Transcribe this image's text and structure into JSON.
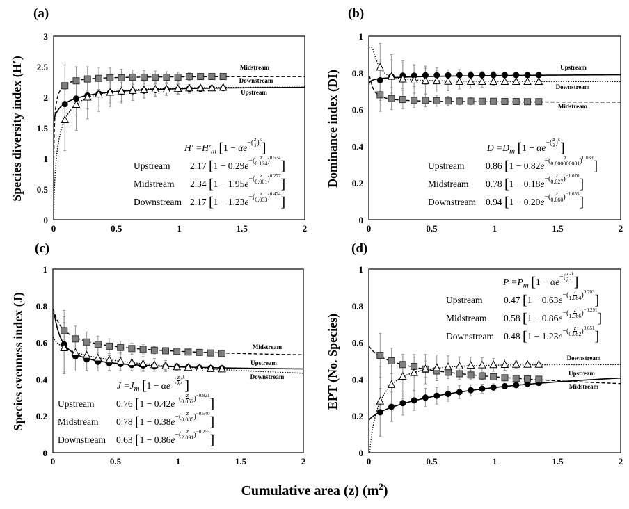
{
  "xlabel": "Cumulative area (z) (m",
  "xlabel_sup": "2",
  "xlabel_close": ")",
  "equation_parts": {
    "one_minus": "1 − ",
    "e": "e",
    "minus": "−(",
    "close": ")",
    "z": "z",
    "open_br": "[",
    "close_br": "]",
    "alpha": "α",
    "lambda": "λ",
    "k": "k"
  },
  "colors": {
    "line": "#000000",
    "square_fill": "#808080",
    "circle_fill": "#000000",
    "triangle_fill": "#ffffff",
    "errorbar": "#999999"
  },
  "chart_data": [
    {
      "panel": "(a)",
      "type": "scatter",
      "ylabel": "Species diversity index (H′)",
      "xlim": [
        0,
        2
      ],
      "ylim": [
        0,
        3
      ],
      "xticks": [
        "0",
        "0.5",
        "1",
        "1.5",
        "2"
      ],
      "yticks": [
        "0",
        "0.5",
        "1",
        "1.5",
        "2",
        "2.5",
        "3"
      ],
      "formula": {
        "lhs": "H′ =H′",
        "sub": "m"
      },
      "x": [
        0.09,
        0.18,
        0.27,
        0.36,
        0.45,
        0.54,
        0.63,
        0.72,
        0.81,
        0.9,
        0.99,
        1.08,
        1.17,
        1.26,
        1.35
      ],
      "series": [
        {
          "name": "Upstream",
          "marker": "circle",
          "line": "solid",
          "params": {
            "Ym": "2.17",
            "alpha": "0.29",
            "lambda": "0.124",
            "k": "0.534"
          },
          "values": [
            1.89,
            1.98,
            2.03,
            2.06,
            2.08,
            2.09,
            2.1,
            2.11,
            2.12,
            2.13,
            2.13,
            2.14,
            2.14,
            2.15,
            2.15
          ],
          "error": [
            0.3,
            0.27,
            0.22,
            0.2,
            0.17,
            0.15,
            0.13,
            0.11,
            0.1,
            0.09,
            0.08,
            0.07,
            0.05,
            0.03,
            0.01
          ]
        },
        {
          "name": "Midstream",
          "marker": "square",
          "line": "dashed",
          "params": {
            "Ym": "2.34",
            "alpha": "1.95",
            "lambda": "0.001",
            "k": "0.277"
          },
          "values": [
            2.19,
            2.27,
            2.3,
            2.31,
            2.32,
            2.32,
            2.33,
            2.33,
            2.33,
            2.33,
            2.33,
            2.34,
            2.34,
            2.34,
            2.34
          ],
          "error": [
            0.34,
            0.23,
            0.2,
            0.18,
            0.16,
            0.14,
            0.12,
            0.11,
            0.1,
            0.09,
            0.08,
            0.06,
            0.05,
            0.04,
            0.02
          ]
        },
        {
          "name": "Downstream",
          "marker": "triangle",
          "line": "dotted",
          "params": {
            "Ym": "2.17",
            "alpha": "1.23",
            "lambda": "0.033",
            "k": "0.474"
          },
          "values": [
            1.63,
            1.88,
            2.0,
            2.05,
            2.08,
            2.1,
            2.11,
            2.12,
            2.13,
            2.13,
            2.14,
            2.15,
            2.15,
            2.15,
            2.16
          ],
          "error": [
            0.5,
            0.42,
            0.35,
            0.28,
            0.23,
            0.19,
            0.16,
            0.14,
            0.12,
            0.1,
            0.08,
            0.06,
            0.05,
            0.03,
            0.01
          ]
        }
      ]
    },
    {
      "panel": "(b)",
      "type": "scatter",
      "ylabel": "Dominance index (DI)",
      "xlim": [
        0,
        2
      ],
      "ylim": [
        0,
        1
      ],
      "xticks": [
        "0",
        "0.5",
        "1",
        "1.5",
        "2"
      ],
      "yticks": [
        "0",
        "0.2",
        "0.4",
        "0.6",
        "0.8",
        "1"
      ],
      "formula": {
        "lhs": "D =D",
        "sub": "m"
      },
      "x": [
        0.09,
        0.18,
        0.27,
        0.36,
        0.45,
        0.54,
        0.63,
        0.72,
        0.81,
        0.9,
        0.99,
        1.08,
        1.17,
        1.26,
        1.35
      ],
      "series": [
        {
          "name": "Upstream",
          "marker": "circle",
          "line": "solid",
          "params": {
            "Ym": "0.86",
            "alpha": "0.82",
            "lambda": "0.000000001",
            "k": "0.039"
          },
          "values": [
            0.76,
            0.78,
            0.785,
            0.785,
            0.787,
            0.787,
            0.787,
            0.788,
            0.788,
            0.788,
            0.788,
            0.788,
            0.788,
            0.788,
            0.788
          ],
          "error": [
            0.11,
            0.09,
            0.07,
            0.06,
            0.05,
            0.04,
            0.03,
            0.03,
            0.02,
            0.02,
            0.02,
            0.01,
            0.01,
            0.01,
            0.0
          ]
        },
        {
          "name": "Midstream",
          "marker": "square",
          "line": "dashed",
          "params": {
            "Ym": "0.78",
            "alpha": "0.18",
            "lambda": "0.027",
            "k": "−1.070"
          },
          "values": [
            0.68,
            0.66,
            0.655,
            0.65,
            0.65,
            0.648,
            0.647,
            0.646,
            0.646,
            0.645,
            0.645,
            0.644,
            0.644,
            0.643,
            0.643
          ],
          "error": [
            0.09,
            0.06,
            0.05,
            0.04,
            0.035,
            0.03,
            0.025,
            0.02,
            0.02,
            0.015,
            0.01,
            0.01,
            0.005,
            0.005,
            0.0
          ]
        },
        {
          "name": "Downstream",
          "marker": "triangle",
          "line": "dotted",
          "params": {
            "Ym": "0.94",
            "alpha": "0.20",
            "lambda": "0.060",
            "k": "−1.655"
          },
          "values": [
            0.83,
            0.78,
            0.765,
            0.76,
            0.755,
            0.755,
            0.753,
            0.752,
            0.752,
            0.752,
            0.752,
            0.752,
            0.752,
            0.752,
            0.752
          ],
          "error": [
            0.13,
            0.12,
            0.1,
            0.08,
            0.07,
            0.06,
            0.05,
            0.04,
            0.035,
            0.03,
            0.02,
            0.015,
            0.01,
            0.005,
            0.0
          ]
        }
      ]
    },
    {
      "panel": "(c)",
      "type": "scatter",
      "ylabel": "Species evenness index (J)",
      "xlim": [
        0,
        2
      ],
      "ylim": [
        0,
        1
      ],
      "xticks": [
        "0",
        "0.5",
        "1",
        "1.5",
        "2"
      ],
      "yticks": [
        "0",
        "0.2",
        "0.4",
        "0.6",
        "0.8",
        "1"
      ],
      "formula": {
        "lhs": "J =J",
        "sub": "m"
      },
      "x": [
        0.09,
        0.18,
        0.27,
        0.36,
        0.45,
        0.54,
        0.63,
        0.72,
        0.81,
        0.9,
        0.99,
        1.08,
        1.17,
        1.26,
        1.35
      ],
      "series": [
        {
          "name": "Upstream",
          "marker": "circle",
          "line": "solid",
          "params": {
            "Ym": "0.76",
            "alpha": "0.42",
            "lambda": "0.052",
            "k": "−0.821"
          },
          "values": [
            0.59,
            0.525,
            0.508,
            0.495,
            0.488,
            0.483,
            0.478,
            0.475,
            0.472,
            0.47,
            0.467,
            0.465,
            0.463,
            0.461,
            0.46
          ],
          "error": [
            0.15,
            0.08,
            0.06,
            0.05,
            0.04,
            0.035,
            0.03,
            0.025,
            0.02,
            0.02,
            0.015,
            0.01,
            0.01,
            0.005,
            0.0
          ]
        },
        {
          "name": "Midstream",
          "marker": "square",
          "line": "dashed",
          "params": {
            "Ym": "0.78",
            "alpha": "0.38",
            "lambda": "0.085",
            "k": "−0.540"
          },
          "values": [
            0.665,
            0.62,
            0.603,
            0.59,
            0.58,
            0.573,
            0.567,
            0.563,
            0.558,
            0.555,
            0.552,
            0.548,
            0.546,
            0.543,
            0.54
          ],
          "error": [
            0.11,
            0.07,
            0.055,
            0.045,
            0.04,
            0.035,
            0.03,
            0.025,
            0.02,
            0.015,
            0.012,
            0.01,
            0.008,
            0.005,
            0.0
          ]
        },
        {
          "name": "Downstream",
          "marker": "triangle",
          "line": "dotted",
          "params": {
            "Ym": "0.63",
            "alpha": "0.86",
            "lambda": "2.091",
            "k": "−0.255"
          },
          "values": [
            0.57,
            0.545,
            0.53,
            0.515,
            0.505,
            0.497,
            0.49,
            0.483,
            0.478,
            0.472,
            0.467,
            0.463,
            0.46,
            0.457,
            0.455
          ],
          "error": [
            0.14,
            0.1,
            0.085,
            0.07,
            0.06,
            0.05,
            0.045,
            0.04,
            0.035,
            0.03,
            0.02,
            0.015,
            0.01,
            0.005,
            0.0
          ]
        }
      ]
    },
    {
      "panel": "(d)",
      "type": "scatter",
      "ylabel": "EPT (No. Species)",
      "xlim": [
        0,
        2
      ],
      "ylim": [
        0,
        1
      ],
      "xticks": [
        "0",
        "0.5",
        "1",
        "1.5",
        "2"
      ],
      "yticks": [
        "0",
        "0.2",
        "0.4",
        "0.6",
        "0.8",
        "1"
      ],
      "formula": {
        "lhs": "P =P",
        "sub": "m"
      },
      "x": [
        0.09,
        0.18,
        0.27,
        0.36,
        0.45,
        0.54,
        0.63,
        0.72,
        0.81,
        0.9,
        0.99,
        1.08,
        1.17,
        1.26,
        1.35
      ],
      "series": [
        {
          "name": "Upstream",
          "marker": "circle",
          "line": "solid",
          "params": {
            "Ym": "0.47",
            "alpha": "0.63",
            "lambda": "1.084",
            "k": "0.703"
          },
          "values": [
            0.22,
            0.25,
            0.27,
            0.285,
            0.3,
            0.31,
            0.32,
            0.33,
            0.34,
            0.348,
            0.355,
            0.362,
            0.368,
            0.375,
            0.38
          ],
          "error": [
            0.13,
            0.08,
            0.065,
            0.055,
            0.05,
            0.045,
            0.04,
            0.035,
            0.03,
            0.025,
            0.02,
            0.015,
            0.01,
            0.005,
            0.0
          ]
        },
        {
          "name": "Midstream",
          "marker": "square",
          "line": "dashed",
          "params": {
            "Ym": "0.58",
            "alpha": "0.86",
            "lambda": "1.366",
            "k": "−0.291"
          },
          "values": [
            0.53,
            0.5,
            0.48,
            0.47,
            0.455,
            0.445,
            0.438,
            0.43,
            0.423,
            0.418,
            0.413,
            0.408,
            0.404,
            0.402,
            0.4
          ],
          "error": [
            0.12,
            0.07,
            0.055,
            0.05,
            0.045,
            0.04,
            0.035,
            0.03,
            0.025,
            0.02,
            0.015,
            0.01,
            0.008,
            0.005,
            0.0
          ]
        },
        {
          "name": "Downstream",
          "marker": "triangle",
          "line": "dotted",
          "params": {
            "Ym": "0.48",
            "alpha": "1.23",
            "lambda": "0.082",
            "k": "0.651"
          },
          "values": [
            0.28,
            0.37,
            0.415,
            0.435,
            0.455,
            0.462,
            0.467,
            0.472,
            0.475,
            0.477,
            0.478,
            0.479,
            0.48,
            0.48,
            0.48
          ],
          "error": [
            0.19,
            0.2,
            0.12,
            0.1,
            0.08,
            0.07,
            0.06,
            0.05,
            0.045,
            0.04,
            0.035,
            0.03,
            0.02,
            0.01,
            0.0
          ]
        }
      ]
    }
  ]
}
